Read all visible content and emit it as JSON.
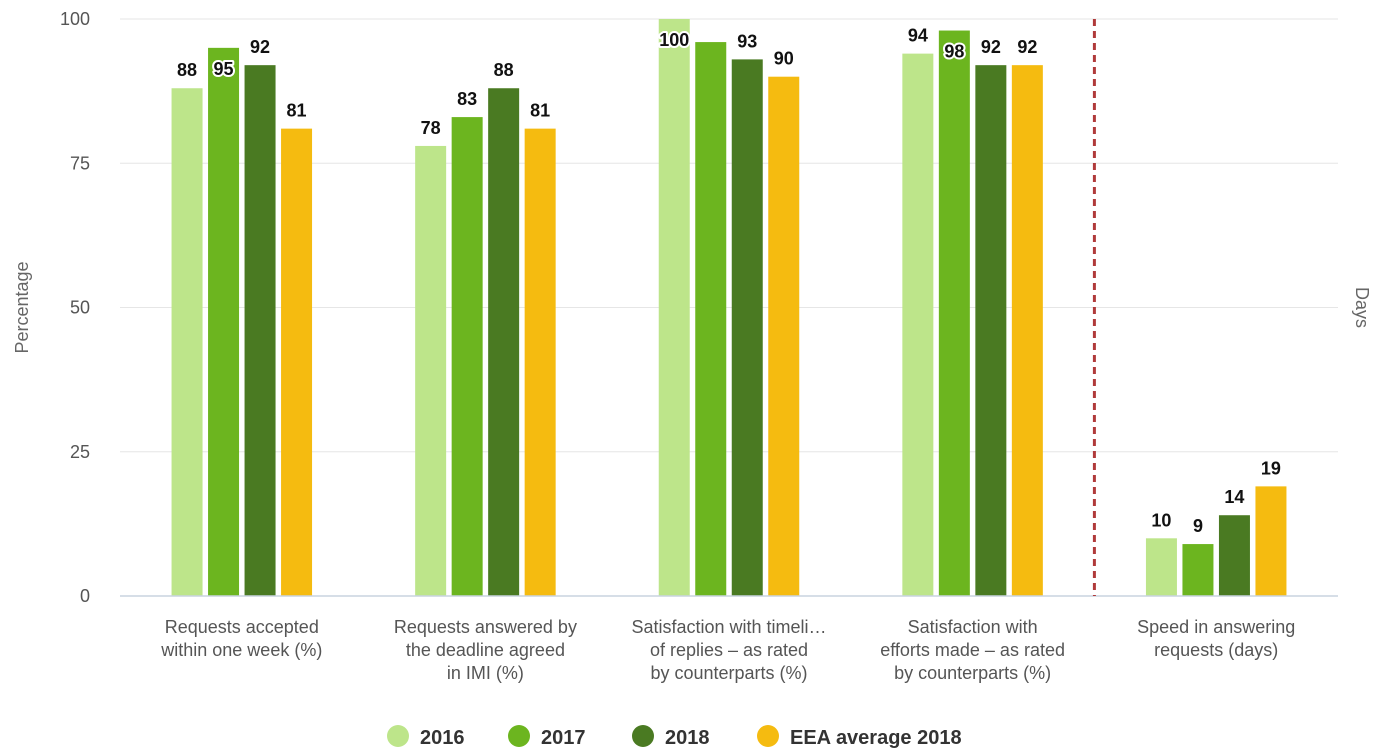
{
  "chart_data": {
    "type": "bar",
    "categories": [
      [
        "Requests accepted",
        "within one week (%)"
      ],
      [
        "Requests answered by",
        "the deadline agreed",
        "in IMI (%)"
      ],
      [
        "Satisfaction with timeli…",
        "of replies – as rated",
        "by counterparts (%)"
      ],
      [
        "Satisfaction with",
        "efforts made – as rated",
        "by counterparts (%)"
      ],
      [
        "Speed in answering",
        "requests (days)"
      ]
    ],
    "series": [
      {
        "name": "2016",
        "color": "#bde58a",
        "values": [
          88,
          78,
          100,
          94,
          10
        ]
      },
      {
        "name": "2017",
        "color": "#6cb51f",
        "values": [
          95,
          83,
          96,
          98,
          9
        ]
      },
      {
        "name": "2018",
        "color": "#4a7a22",
        "values": [
          92,
          88,
          93,
          92,
          14
        ]
      },
      {
        "name": "EEA average 2018",
        "color": "#f5bb10",
        "values": [
          81,
          81,
          90,
          92,
          19
        ]
      }
    ],
    "data_labels": [
      [
        "88",
        "78",
        "100",
        "94",
        "10"
      ],
      [
        "95",
        "83",
        "",
        "98",
        "9"
      ],
      [
        "92",
        "88",
        "93",
        "92",
        "14"
      ],
      [
        "81",
        "81",
        "90",
        "92",
        "19"
      ]
    ],
    "ylabel": "Percentage",
    "y2label": "Days",
    "ylim": [
      0,
      100
    ],
    "yticks": [
      "0",
      "25",
      "50",
      "75",
      "100"
    ],
    "grid": true,
    "legend_position": "bottom-center",
    "divider": {
      "after_category": 3,
      "color": "#b03a3a",
      "style": "dashed"
    }
  }
}
